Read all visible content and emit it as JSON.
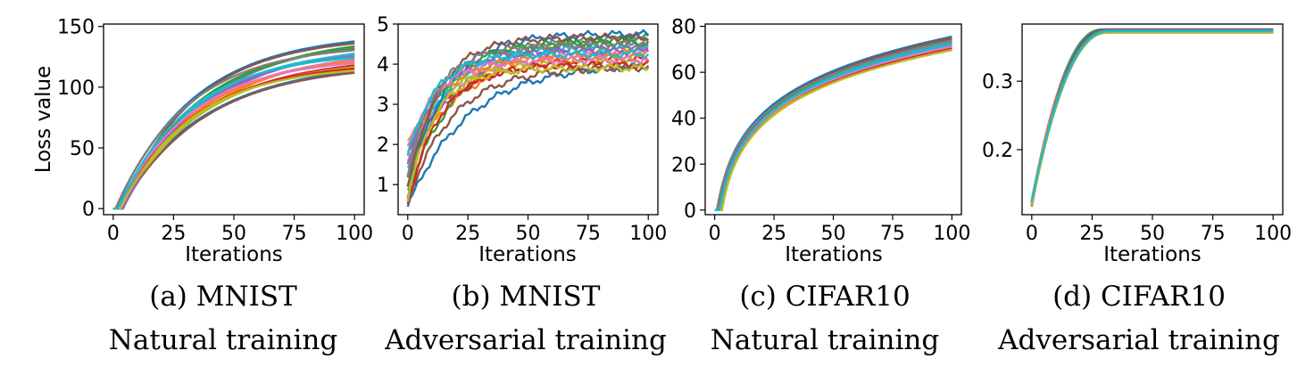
{
  "palette": [
    "#1f77b4",
    "#ff7f0e",
    "#2ca02c",
    "#d62728",
    "#9467bd",
    "#8c564b",
    "#e377c2",
    "#7f7f7f",
    "#bcbd22",
    "#17becf"
  ],
  "chart_data": [
    {
      "type": "line",
      "caption_line1": "(a) MNIST",
      "caption_line2": "Natural training",
      "xlabel": "Iterations",
      "ylabel": "Loss value",
      "xlim": [
        -4,
        104
      ],
      "ylim": [
        -5,
        152
      ],
      "xticks": [
        "0",
        "25",
        "50",
        "75",
        "100"
      ],
      "xtick_values": [
        0,
        25,
        50,
        75,
        100
      ],
      "yticks": [
        "0",
        "50",
        "100",
        "150"
      ],
      "ytick_values": [
        0,
        50,
        100,
        150
      ],
      "curve": "exp",
      "series_count": 20,
      "start": [
        0,
        0
      ],
      "delay": [
        1,
        4
      ],
      "final": [
        118,
        146
      ],
      "rate": [
        0.027,
        0.034
      ],
      "note": "Approximately 20 loss curves rising from 0 and leveling between about 118 and 146 at 100 iterations"
    },
    {
      "type": "line",
      "caption_line1": "(b) MNIST",
      "caption_line2": "Adversarial training",
      "xlabel": "Iterations",
      "ylabel": "",
      "xlim": [
        -4,
        104
      ],
      "ylim": [
        0.25,
        5.0
      ],
      "xticks": [
        "0",
        "25",
        "50",
        "75",
        "100"
      ],
      "xtick_values": [
        0,
        25,
        50,
        75,
        100
      ],
      "yticks": [
        "1",
        "2",
        "3",
        "4",
        "5"
      ],
      "ytick_values": [
        1,
        2,
        3,
        4,
        5
      ],
      "curve": "exp_noisy",
      "series_count": 20,
      "start": [
        0.45,
        2.1
      ],
      "delay": [
        0,
        0
      ],
      "final": [
        3.9,
        4.8
      ],
      "rate": [
        0.04,
        0.09
      ],
      "note": "Approximately 20 noisy loss curves starting between about 0.45 and 2.1 and leveling between about 3.9 and 4.8"
    },
    {
      "type": "line",
      "caption_line1": "(c) CIFAR10",
      "caption_line2": "Natural training",
      "xlabel": "Iterations",
      "ylabel": "",
      "xlim": [
        -4,
        104
      ],
      "ylim": [
        -2,
        81
      ],
      "xticks": [
        "0",
        "25",
        "50",
        "75",
        "100"
      ],
      "xtick_values": [
        0,
        25,
        50,
        75,
        100
      ],
      "yticks": [
        "0",
        "20",
        "40",
        "60",
        "80"
      ],
      "ytick_values": [
        0,
        20,
        40,
        60,
        80
      ],
      "curve": "log",
      "series_count": 20,
      "start": [
        0,
        0
      ],
      "delay": [
        1,
        3
      ],
      "final": [
        70,
        76
      ],
      "rate": [
        0.9,
        1.1
      ],
      "note": "Approximately 20 loss curves rising steeply from 0 and reaching about 70 to 76 at 100 iterations"
    },
    {
      "type": "line",
      "caption_line1": "(d) CIFAR10",
      "caption_line2": "Adversarial training",
      "xlabel": "Iterations",
      "ylabel": "",
      "xlim": [
        -4,
        104
      ],
      "ylim": [
        0.105,
        0.3835
      ],
      "xticks": [
        "0",
        "25",
        "50",
        "75",
        "100"
      ],
      "xtick_values": [
        0,
        25,
        50,
        75,
        100
      ],
      "yticks": [
        "0.2",
        "0.3"
      ],
      "ytick_values": [
        0.2,
        0.3
      ],
      "curve": "sigmoid",
      "series_count": 20,
      "start": [
        0.117,
        0.127
      ],
      "delay": [
        0,
        0
      ],
      "final": [
        0.371,
        0.376
      ],
      "rate": [
        0.95,
        1.05
      ],
      "note": "Approximately 20 nearly overlapping curves rising from about 0.12 to about 0.37 by iteration 30 and then flat"
    }
  ]
}
